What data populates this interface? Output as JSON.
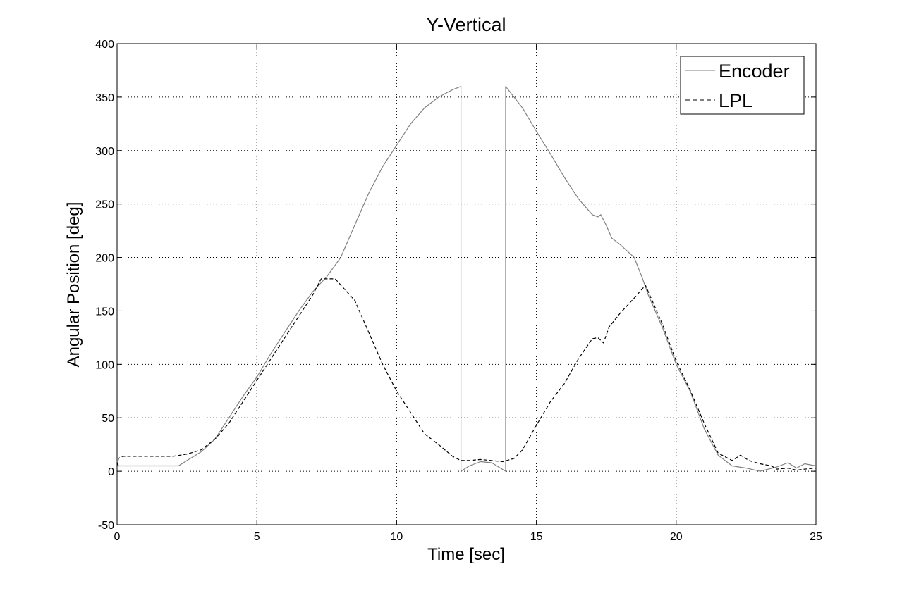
{
  "chart_data": {
    "type": "line",
    "title": "Y-Vertical",
    "xlabel": "Time [sec]",
    "ylabel": "Angular Position [deg]",
    "xlim": [
      0,
      25
    ],
    "ylim": [
      -50,
      400
    ],
    "xticks": [
      0,
      5,
      10,
      15,
      20,
      25
    ],
    "yticks": [
      -50,
      0,
      50,
      100,
      150,
      200,
      250,
      300,
      350,
      400
    ],
    "xtick_labels": [
      "0",
      "5",
      "10",
      "15",
      "20",
      "25"
    ],
    "ytick_labels": [
      "-50",
      "0",
      "50",
      "100",
      "150",
      "200",
      "250",
      "300",
      "350",
      "400"
    ],
    "grid": true,
    "legend_position": "top-right",
    "series": [
      {
        "name": "Encoder",
        "style": "solid",
        "color": "#808080",
        "x": [
          0,
          0.05,
          0.1,
          2.2,
          2.5,
          3.0,
          3.5,
          4.0,
          4.5,
          5.0,
          5.5,
          6.0,
          6.5,
          7.0,
          7.5,
          8.0,
          8.5,
          9.0,
          9.5,
          10.0,
          10.5,
          11.0,
          11.5,
          12.0,
          12.3,
          12.3,
          12.6,
          13.0,
          13.4,
          13.9,
          13.9,
          14.2,
          14.5,
          15.0,
          15.5,
          16.0,
          16.5,
          17.0,
          17.2,
          17.3,
          17.5,
          17.7,
          18.0,
          18.5,
          18.8,
          19.0,
          19.5,
          20.0,
          20.5,
          21.0,
          21.5,
          22.0,
          22.5,
          23.0,
          23.3,
          23.6,
          24.0,
          24.3,
          24.6,
          25.0
        ],
        "y": [
          10,
          5,
          5,
          5,
          10,
          18,
          30,
          50,
          70,
          88,
          110,
          130,
          150,
          168,
          182,
          200,
          230,
          260,
          285,
          305,
          325,
          340,
          350,
          357,
          360,
          0,
          5,
          9,
          8,
          0,
          360,
          350,
          340,
          318,
          297,
          275,
          255,
          240,
          238,
          240,
          230,
          218,
          212,
          200,
          180,
          165,
          135,
          100,
          75,
          40,
          15,
          5,
          3,
          0,
          2,
          4,
          8,
          3,
          7,
          5
        ]
      },
      {
        "name": "LPL",
        "style": "dashed",
        "color": "#000000",
        "x": [
          0,
          0.05,
          0.2,
          1.0,
          2.0,
          2.5,
          3.0,
          3.5,
          4.0,
          4.5,
          5.0,
          5.5,
          6.0,
          6.5,
          7.0,
          7.3,
          7.8,
          8.5,
          9.0,
          9.5,
          10.0,
          10.5,
          11.0,
          11.5,
          12.0,
          12.3,
          12.6,
          13.0,
          13.4,
          13.8,
          14.2,
          14.5,
          15.0,
          15.5,
          16.0,
          16.5,
          17.0,
          17.2,
          17.4,
          17.6,
          18.0,
          18.5,
          18.9,
          19.0,
          19.5,
          20.0,
          20.5,
          21.0,
          21.5,
          22.0,
          22.3,
          22.6,
          23.0,
          23.4,
          23.6,
          24.0,
          24.3,
          24.6,
          25.0
        ],
        "y": [
          5,
          12,
          14,
          14,
          14,
          16,
          20,
          30,
          45,
          65,
          85,
          105,
          125,
          145,
          165,
          180,
          180,
          160,
          130,
          100,
          75,
          55,
          35,
          25,
          14,
          10,
          10,
          11,
          10,
          9,
          12,
          20,
          43,
          65,
          82,
          105,
          124,
          125,
          120,
          135,
          148,
          162,
          174,
          168,
          138,
          103,
          76,
          45,
          17,
          10,
          15,
          10,
          7,
          5,
          2,
          3,
          1,
          2,
          3
        ]
      }
    ]
  }
}
